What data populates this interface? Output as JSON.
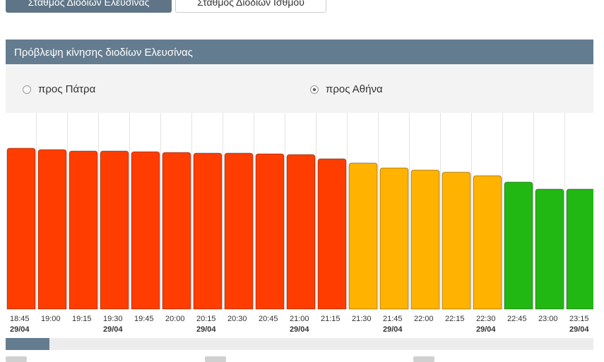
{
  "tabs": [
    {
      "label": "Σταθμός Διοδίων Ελευσίνας",
      "active": true
    },
    {
      "label": "Σταθμός Διοδίων Ισθμού",
      "active": false
    }
  ],
  "panel": {
    "title": "Πρόβλεψη κίνησης διοδίων Ελευσίνας"
  },
  "direction": {
    "options": [
      {
        "label": "προς Πάτρα",
        "selected": false
      },
      {
        "label": "προς Αθήνα",
        "selected": true
      }
    ]
  },
  "colors": {
    "high": "#ff3d00",
    "medium": "#ffb300",
    "low": "#22b814",
    "accent": "#647c8f"
  },
  "chart_data": {
    "type": "bar",
    "categories": [
      "18:45",
      "19:00",
      "19:15",
      "19:30",
      "19:45",
      "20:00",
      "20:15",
      "20:30",
      "20:45",
      "21:00",
      "21:15",
      "21:30",
      "21:45",
      "22:00",
      "22:15",
      "22:30",
      "22:45",
      "23:00",
      "23:15"
    ],
    "date_labels": [
      "29/04",
      "",
      "",
      "29/04",
      "",
      "",
      "29/04",
      "",
      "",
      "29/04",
      "",
      "",
      "29/04",
      "",
      "",
      "29/04",
      "",
      "",
      "29/04"
    ],
    "values": [
      228,
      226,
      224,
      224,
      223,
      222,
      221,
      221,
      220,
      219,
      213,
      207,
      200,
      197,
      194,
      189,
      180,
      170,
      170
    ],
    "levels": [
      "high",
      "high",
      "high",
      "high",
      "high",
      "high",
      "high",
      "high",
      "high",
      "high",
      "high",
      "medium",
      "medium",
      "medium",
      "medium",
      "medium",
      "low",
      "low",
      "low"
    ],
    "ylim": [
      0,
      278
    ],
    "grid": "vertical"
  }
}
